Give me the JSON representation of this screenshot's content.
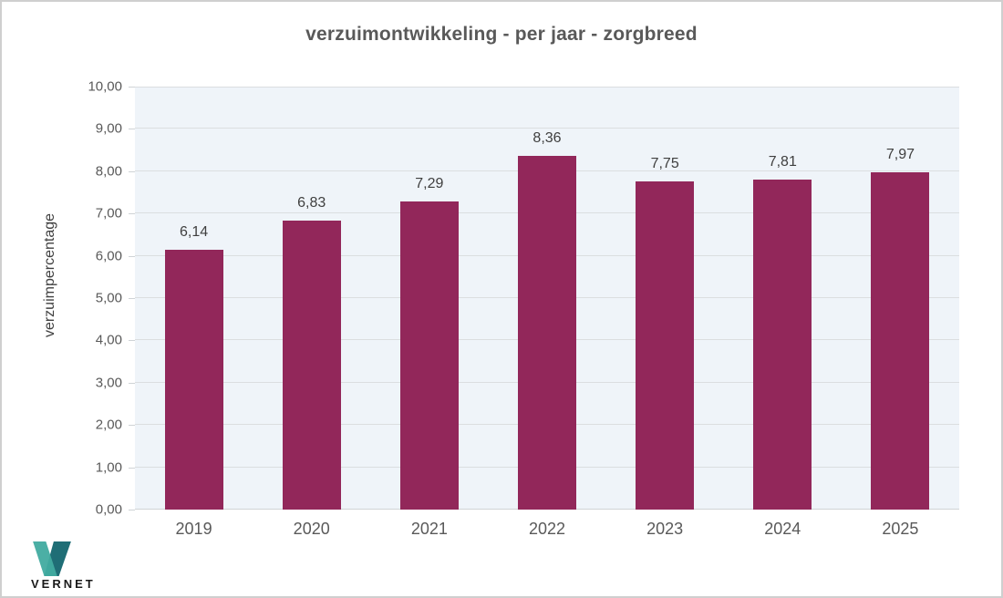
{
  "chart_data": {
    "type": "bar",
    "title": "verzuimontwikkeling - per jaar - zorgbreed",
    "categories": [
      "2019",
      "2020",
      "2021",
      "2022",
      "2023",
      "2024",
      "2025"
    ],
    "values": [
      6.14,
      6.83,
      7.29,
      8.36,
      7.75,
      7.81,
      7.97
    ],
    "value_labels": [
      "6,14",
      "6,83",
      "7,29",
      "8,36",
      "7,75",
      "7,81",
      "7,97"
    ],
    "xlabel": "",
    "ylabel": "verzuimpercentage",
    "ylim": [
      0,
      10
    ],
    "ytick_step": 1,
    "ytick_labels": [
      "0,00",
      "1,00",
      "2,00",
      "3,00",
      "4,00",
      "5,00",
      "6,00",
      "7,00",
      "8,00",
      "9,00",
      "10,00"
    ],
    "grid": true,
    "legend": false,
    "bar_color": "#92275a",
    "plot_background": "#eff4f9",
    "gridline_color": "#dbdee0"
  },
  "logo": {
    "text": "VERNET",
    "mark_color_light": "#41aba0",
    "mark_color_dark": "#1f6e76"
  }
}
